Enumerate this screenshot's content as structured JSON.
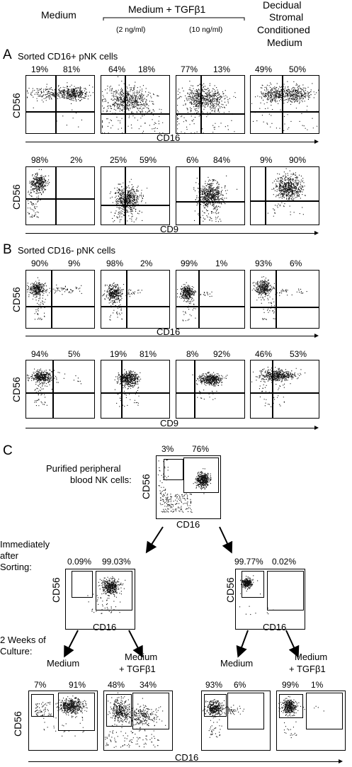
{
  "header": {
    "medium": "Medium",
    "tgf": "Medium + TGFβ1",
    "conc_low": "(2 ng/ml)",
    "conc_high": "(10 ng/ml)",
    "dsc": [
      "Decidual",
      "Stromal",
      "Conditioned",
      "Medium"
    ]
  },
  "panel_a": {
    "letter": "A",
    "title": "Sorted CD16+ pNK cells",
    "y_axis": "CD56",
    "cd16_row": {
      "x_axis": "CD16",
      "percents": [
        [
          "19%",
          "81%"
        ],
        [
          "64%",
          "18%"
        ],
        [
          "77%",
          "13%"
        ],
        [
          "49%",
          "50%"
        ]
      ]
    },
    "cd9_row": {
      "x_axis": "CD9",
      "percents": [
        [
          "98%",
          "2%"
        ],
        [
          "25%",
          "59%"
        ],
        [
          "6%",
          "84%"
        ],
        [
          "9%",
          "90%"
        ]
      ]
    }
  },
  "panel_b": {
    "letter": "B",
    "title": "Sorted CD16- pNK cells",
    "y_axis": "CD56",
    "cd16_row": {
      "x_axis": "CD16",
      "percents": [
        [
          "90%",
          "9%"
        ],
        [
          "98%",
          "2%"
        ],
        [
          "99%",
          "1%"
        ],
        [
          "93%",
          "6%"
        ]
      ]
    },
    "cd9_row": {
      "x_axis": "CD9",
      "percents": [
        [
          "94%",
          "5%"
        ],
        [
          "19%",
          "81%"
        ],
        [
          "8%",
          "92%"
        ],
        [
          "46%",
          "53%"
        ]
      ]
    }
  },
  "panel_c": {
    "letter": "C",
    "purified_label": [
      "Purified peripheral",
      "blood NK cells:"
    ],
    "purified_percents": [
      "3%",
      "76%"
    ],
    "sorting_label": [
      "Immediately",
      "after",
      "Sorting:"
    ],
    "sort_left_percents": [
      "0.09%",
      "99.03%"
    ],
    "sort_right_percents": [
      "99.77%",
      "0.02%"
    ],
    "culture_label": [
      "2 Weeks of",
      "Culture:"
    ],
    "medium": "Medium",
    "medium_tgf": [
      "Medium",
      "+ TGFβ1"
    ],
    "culture_percents": [
      [
        "7%",
        "91%"
      ],
      [
        "48%",
        "34%"
      ],
      [
        "93%",
        "6%"
      ],
      [
        "99%",
        "1%"
      ]
    ],
    "x_axis": "CD16",
    "y_axis": "CD56"
  }
}
